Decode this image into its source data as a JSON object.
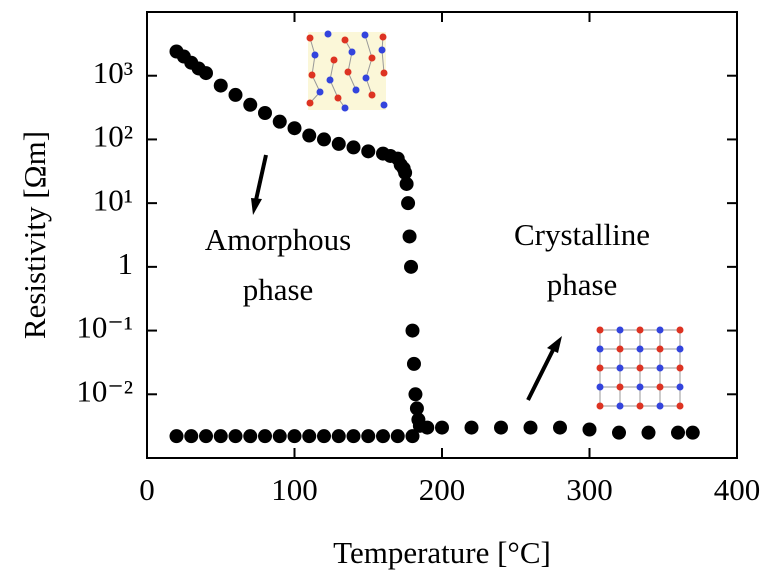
{
  "chart_data": {
    "type": "scatter",
    "xlabel": "Temperature [°C]",
    "ylabel": "Resistivity [Ωm]",
    "annotations": [
      [
        "Amorphous",
        "phase"
      ],
      [
        "Crystalline",
        "phase"
      ]
    ],
    "xlim": [
      0,
      400
    ],
    "xticks": [
      0,
      100,
      200,
      300,
      400
    ],
    "ylim": [
      0.001,
      10000
    ],
    "ylog": true,
    "yticks": [
      {
        "value": 0.01,
        "label": "10⁻²"
      },
      {
        "value": 0.1,
        "label": "10⁻¹"
      },
      1,
      {
        "value": 10,
        "label": "10¹"
      },
      {
        "value": 100,
        "label": "10²"
      },
      {
        "value": 1000,
        "label": "10³"
      }
    ],
    "series": [
      {
        "color": "#000000",
        "x": [
          20,
          25,
          30,
          35,
          40,
          50,
          60,
          70,
          80,
          90,
          100,
          110,
          120,
          130,
          140,
          150,
          160,
          165,
          170,
          172,
          174,
          175,
          176,
          177,
          178,
          179,
          180,
          181,
          182,
          183,
          184,
          185,
          190,
          200,
          220,
          240,
          260,
          280,
          300,
          320,
          340,
          360,
          370
        ],
        "values": [
          2400,
          2000,
          1600,
          1300,
          1100,
          700,
          500,
          350,
          260,
          190,
          150,
          115,
          100,
          85,
          75,
          65,
          60,
          55,
          50,
          40,
          35,
          30,
          20,
          10,
          3,
          1,
          0.1,
          0.03,
          0.01,
          0.006,
          0.004,
          0.0032,
          0.003,
          0.003,
          0.003,
          0.003,
          0.003,
          0.003,
          0.0028,
          0.0025,
          0.0025,
          0.0025,
          0.0025
        ]
      },
      {
        "color": "#000000",
        "x": [
          20,
          30,
          40,
          50,
          60,
          70,
          80,
          90,
          100,
          110,
          120,
          130,
          140,
          150,
          160,
          170,
          180
        ],
        "values": [
          0.0022,
          0.0022,
          0.0022,
          0.0022,
          0.0022,
          0.0022,
          0.0022,
          0.0022,
          0.0022,
          0.0022,
          0.0022,
          0.0022,
          0.0022,
          0.0022,
          0.0022,
          0.0022,
          0.0022
        ]
      }
    ]
  }
}
